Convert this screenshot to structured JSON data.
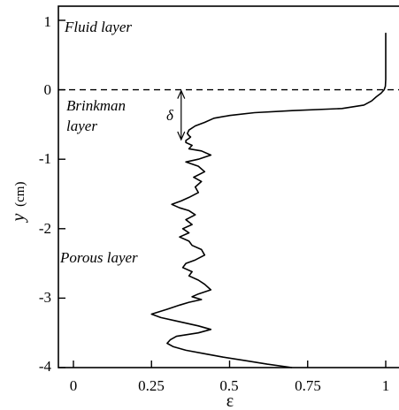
{
  "chart_data": {
    "type": "line",
    "xlabel": "ε",
    "ylabel": "y",
    "ylabel_unit": "(cm)",
    "xlim": [
      -0.03,
      1.03
    ],
    "ylim": [
      -4.0,
      1.2
    ],
    "xticks": [
      0,
      0.25,
      0.5,
      0.75,
      1
    ],
    "xtick_labels": [
      "0",
      "0.25",
      "0.5",
      "0.75",
      "1"
    ],
    "yticks": [
      1,
      0,
      -1,
      -2,
      -3,
      -4
    ],
    "ytick_labels": [
      "1",
      "0",
      "-1",
      "-2",
      "-3",
      "-4"
    ],
    "grid": false,
    "interface_line": {
      "y": 0,
      "style": "dashed"
    },
    "annotations": {
      "fluid_layer": "Fluid layer",
      "brinkman_line1": "Brinkman",
      "brinkman_line2": "layer",
      "porous_layer": "Porous layer",
      "delta": "δ"
    },
    "delta_arrow": {
      "x": 0.345,
      "y_top": 0.0,
      "y_bottom": -0.73
    },
    "series": [
      {
        "points": [
          [
            1.0,
            0.82
          ],
          [
            1.0,
            0.6
          ],
          [
            1.0,
            0.35
          ],
          [
            1.0,
            0.15
          ],
          [
            0.999,
            0.05
          ],
          [
            0.995,
            0.0
          ],
          [
            0.985,
            -0.05
          ],
          [
            0.97,
            -0.1
          ],
          [
            0.955,
            -0.16
          ],
          [
            0.93,
            -0.22
          ],
          [
            0.86,
            -0.27
          ],
          [
            0.7,
            -0.3
          ],
          [
            0.58,
            -0.33
          ],
          [
            0.5,
            -0.37
          ],
          [
            0.45,
            -0.41
          ],
          [
            0.42,
            -0.47
          ],
          [
            0.39,
            -0.52
          ],
          [
            0.37,
            -0.58
          ],
          [
            0.365,
            -0.63
          ],
          [
            0.37,
            -0.66
          ],
          [
            0.375,
            -0.68
          ],
          [
            0.37,
            -0.7
          ],
          [
            0.36,
            -0.73
          ],
          [
            0.36,
            -0.76
          ],
          [
            0.38,
            -0.8
          ],
          [
            0.37,
            -0.85
          ],
          [
            0.41,
            -0.88
          ],
          [
            0.44,
            -0.94
          ],
          [
            0.4,
            -1.0
          ],
          [
            0.36,
            -1.04
          ],
          [
            0.4,
            -1.1
          ],
          [
            0.42,
            -1.18
          ],
          [
            0.385,
            -1.26
          ],
          [
            0.41,
            -1.32
          ],
          [
            0.39,
            -1.4
          ],
          [
            0.4,
            -1.48
          ],
          [
            0.37,
            -1.55
          ],
          [
            0.345,
            -1.6
          ],
          [
            0.315,
            -1.65
          ],
          [
            0.34,
            -1.7
          ],
          [
            0.37,
            -1.74
          ],
          [
            0.39,
            -1.8
          ],
          [
            0.36,
            -1.87
          ],
          [
            0.38,
            -1.94
          ],
          [
            0.35,
            -2.0
          ],
          [
            0.37,
            -2.06
          ],
          [
            0.34,
            -2.12
          ],
          [
            0.37,
            -2.18
          ],
          [
            0.38,
            -2.24
          ],
          [
            0.41,
            -2.3
          ],
          [
            0.42,
            -2.38
          ],
          [
            0.39,
            -2.45
          ],
          [
            0.36,
            -2.5
          ],
          [
            0.35,
            -2.56
          ],
          [
            0.38,
            -2.62
          ],
          [
            0.37,
            -2.68
          ],
          [
            0.4,
            -2.74
          ],
          [
            0.42,
            -2.8
          ],
          [
            0.44,
            -2.88
          ],
          [
            0.4,
            -2.94
          ],
          [
            0.38,
            -2.98
          ],
          [
            0.41,
            -3.02
          ],
          [
            0.37,
            -3.06
          ],
          [
            0.34,
            -3.1
          ],
          [
            0.3,
            -3.16
          ],
          [
            0.25,
            -3.23
          ],
          [
            0.28,
            -3.28
          ],
          [
            0.33,
            -3.33
          ],
          [
            0.4,
            -3.4
          ],
          [
            0.44,
            -3.45
          ],
          [
            0.4,
            -3.5
          ],
          [
            0.33,
            -3.55
          ],
          [
            0.31,
            -3.6
          ],
          [
            0.3,
            -3.65
          ],
          [
            0.32,
            -3.7
          ],
          [
            0.36,
            -3.75
          ],
          [
            0.42,
            -3.8
          ],
          [
            0.48,
            -3.85
          ],
          [
            0.55,
            -3.9
          ],
          [
            0.62,
            -3.95
          ],
          [
            0.7,
            -4.0
          ]
        ]
      }
    ]
  }
}
